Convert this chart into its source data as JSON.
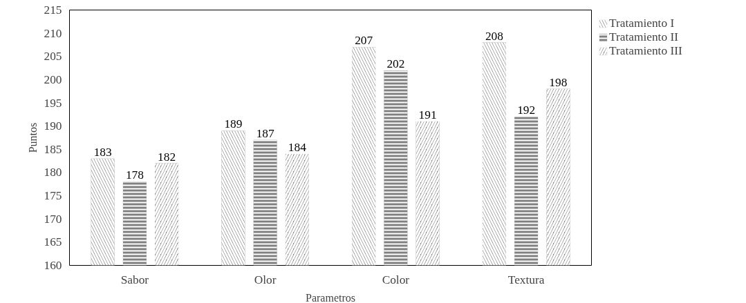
{
  "chart_data": {
    "type": "bar",
    "xlabel": "Parametros",
    "ylabel": "Puntos",
    "categories": [
      "Sabor",
      "Olor",
      "Color",
      "Textura"
    ],
    "series": [
      {
        "name": "Tratamiento I",
        "color": "#808080",
        "values": [
          183,
          189,
          207,
          208
        ]
      },
      {
        "name": "Tratamiento II",
        "color": "#808080",
        "values": [
          178,
          187,
          202,
          192
        ]
      },
      {
        "name": "Tratamiento III",
        "color": "#808080",
        "values": [
          182,
          184,
          191,
          198
        ]
      }
    ],
    "ylim": [
      160,
      215
    ],
    "yticks": [
      160,
      165,
      170,
      175,
      180,
      185,
      190,
      195,
      200,
      205,
      210,
      215
    ],
    "data_labels": true,
    "grid": false,
    "legend": "top right"
  }
}
